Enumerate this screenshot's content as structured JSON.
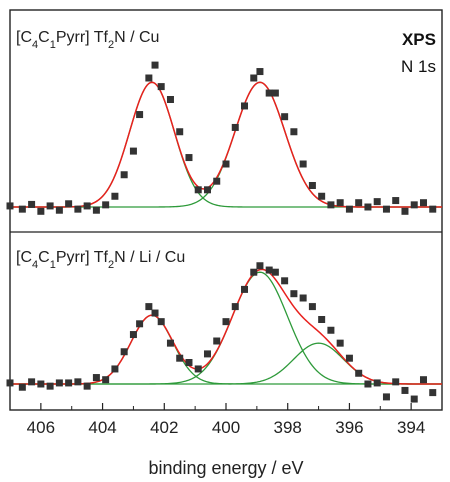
{
  "chart_data": {
    "type": "scatter",
    "xlabel": "binding energy / eV",
    "x_reversed": true,
    "xlim": [
      407,
      393
    ],
    "x_ticks": [
      "406",
      "404",
      "402",
      "400",
      "398",
      "396",
      "394"
    ],
    "y_ticks_shown": false,
    "grid": false,
    "technique": "XPS",
    "region": "N 1s",
    "colors": {
      "data": "#333333",
      "envelope": "#e8211e",
      "component": "#2e9a3a"
    },
    "panels": [
      {
        "label_parts": [
          "[C",
          "4",
          "C",
          "1",
          "Pyrr] Tf",
          "2",
          "N / Cu"
        ],
        "baseline": 0,
        "data_points": [
          [
            407,
            0.05
          ],
          [
            406.6,
            -0.1
          ],
          [
            406.3,
            0.12
          ],
          [
            406.0,
            -0.2
          ],
          [
            405.7,
            0.05
          ],
          [
            405.4,
            -0.15
          ],
          [
            405.1,
            0.15
          ],
          [
            404.8,
            -0.1
          ],
          [
            404.5,
            0.05
          ],
          [
            404.2,
            -0.15
          ],
          [
            403.9,
            0.1
          ],
          [
            403.6,
            0.5
          ],
          [
            403.3,
            1.5
          ],
          [
            403.0,
            2.6
          ],
          [
            402.8,
            4.3
          ],
          [
            402.5,
            6.0
          ],
          [
            402.3,
            6.6
          ],
          [
            402.1,
            5.6
          ],
          [
            401.8,
            5.0
          ],
          [
            401.5,
            3.5
          ],
          [
            401.2,
            2.3
          ],
          [
            400.9,
            0.8
          ],
          [
            400.6,
            0.8
          ],
          [
            400.3,
            1.2
          ],
          [
            400.0,
            2.0
          ],
          [
            399.7,
            3.7
          ],
          [
            399.4,
            4.7
          ],
          [
            399.1,
            6.0
          ],
          [
            398.9,
            6.3
          ],
          [
            398.6,
            5.3
          ],
          [
            398.4,
            5.3
          ],
          [
            398.1,
            4.2
          ],
          [
            397.8,
            3.5
          ],
          [
            397.5,
            2.0
          ],
          [
            397.2,
            1.0
          ],
          [
            396.9,
            0.5
          ],
          [
            396.6,
            0.1
          ],
          [
            396.3,
            0.2
          ],
          [
            396.0,
            -0.1
          ],
          [
            395.7,
            0.2
          ],
          [
            395.4,
            0.0
          ],
          [
            395.1,
            0.25
          ],
          [
            394.8,
            -0.1
          ],
          [
            394.5,
            0.3
          ],
          [
            394.2,
            -0.2
          ],
          [
            393.9,
            0.1
          ],
          [
            393.6,
            0.2
          ],
          [
            393.3,
            -0.1
          ]
        ],
        "components": [
          {
            "center": 402.4,
            "height": 5.8,
            "fwhm": 1.7
          },
          {
            "center": 398.9,
            "height": 5.8,
            "fwhm": 1.9
          }
        ]
      },
      {
        "label_parts": [
          "[C",
          "4",
          "C",
          "1",
          "Pyrr] Tf",
          "2",
          "N / Li / Cu"
        ],
        "baseline": 0,
        "data_points": [
          [
            407,
            0.05
          ],
          [
            406.6,
            -0.15
          ],
          [
            406.3,
            0.1
          ],
          [
            406.0,
            0.0
          ],
          [
            405.7,
            -0.1
          ],
          [
            405.4,
            0.05
          ],
          [
            405.1,
            0.05
          ],
          [
            404.8,
            0.1
          ],
          [
            404.5,
            -0.1
          ],
          [
            404.2,
            0.3
          ],
          [
            403.9,
            0.2
          ],
          [
            403.6,
            0.7
          ],
          [
            403.3,
            1.5
          ],
          [
            403.0,
            2.3
          ],
          [
            402.8,
            2.8
          ],
          [
            402.5,
            3.6
          ],
          [
            402.3,
            3.3
          ],
          [
            402.1,
            2.9
          ],
          [
            401.8,
            1.9
          ],
          [
            401.5,
            1.2
          ],
          [
            401.2,
            1.0
          ],
          [
            400.9,
            0.7
          ],
          [
            400.6,
            1.4
          ],
          [
            400.3,
            2.0
          ],
          [
            400.0,
            2.9
          ],
          [
            399.7,
            3.6
          ],
          [
            399.4,
            4.4
          ],
          [
            399.1,
            5.2
          ],
          [
            398.9,
            5.5
          ],
          [
            398.6,
            5.3
          ],
          [
            398.4,
            5.2
          ],
          [
            398.1,
            4.8
          ],
          [
            397.8,
            4.2
          ],
          [
            397.5,
            4.0
          ],
          [
            397.2,
            3.6
          ],
          [
            396.9,
            3.0
          ],
          [
            396.6,
            2.5
          ],
          [
            396.3,
            1.9
          ],
          [
            396.0,
            1.2
          ],
          [
            395.7,
            0.5
          ],
          [
            395.4,
            0.0
          ],
          [
            395.1,
            0.05
          ],
          [
            394.8,
            -0.6
          ],
          [
            394.5,
            0.1
          ],
          [
            394.2,
            -0.3
          ],
          [
            393.9,
            -0.7
          ],
          [
            393.6,
            0.2
          ],
          [
            393.3,
            -0.4
          ]
        ],
        "components": [
          {
            "center": 402.4,
            "height": 3.2,
            "fwhm": 1.6
          },
          {
            "center": 398.9,
            "height": 5.2,
            "fwhm": 2.1
          },
          {
            "center": 397.0,
            "height": 1.9,
            "fwhm": 1.9
          }
        ]
      }
    ]
  }
}
